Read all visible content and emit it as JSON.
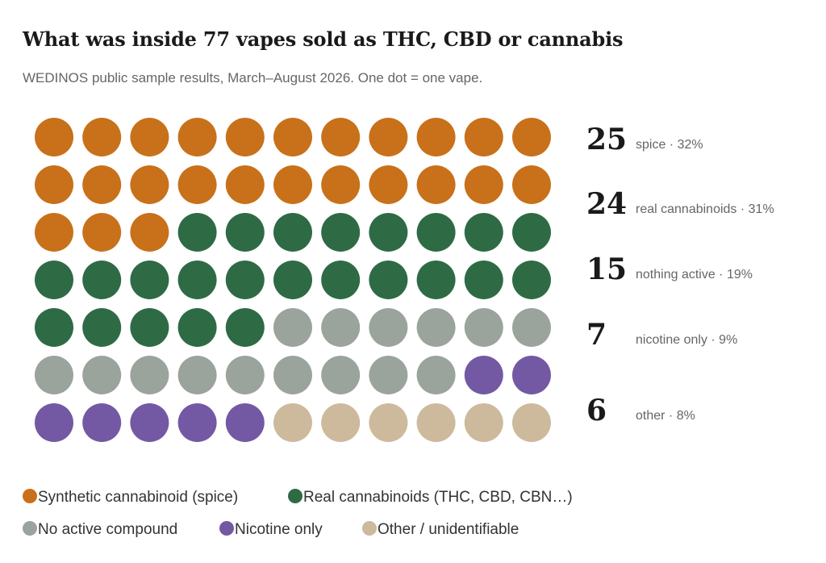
{
  "chart_data": {
    "type": "waffle",
    "title": "What was inside 77 vapes sold as THC, CBD or cannabis",
    "subtitle": "WEDINOS public sample results, March–August 2026. One dot = one vape.",
    "total": 77,
    "columns": 11,
    "categories": [
      {
        "key": "spice",
        "legend": "Synthetic cannabinoid (spice)",
        "count": 25,
        "label": "spice · 32%",
        "color": "#c8711a"
      },
      {
        "key": "real",
        "legend": "Real cannabinoids (THC, CBD, CBN…)",
        "count": 24,
        "label": "real cannabinoids · 31%",
        "color": "#2e6b45"
      },
      {
        "key": "none",
        "legend": "No active compound",
        "count": 15,
        "label": "nothing active · 19%",
        "color": "#9ba39d"
      },
      {
        "key": "nicotine",
        "legend": "Nicotine only",
        "count": 7,
        "label": "nicotine only · 9%",
        "color": "#7359a3"
      },
      {
        "key": "other",
        "legend": "Other / unidentifiable",
        "count": 6,
        "label": "other · 8%",
        "color": "#cdb99c"
      }
    ]
  }
}
